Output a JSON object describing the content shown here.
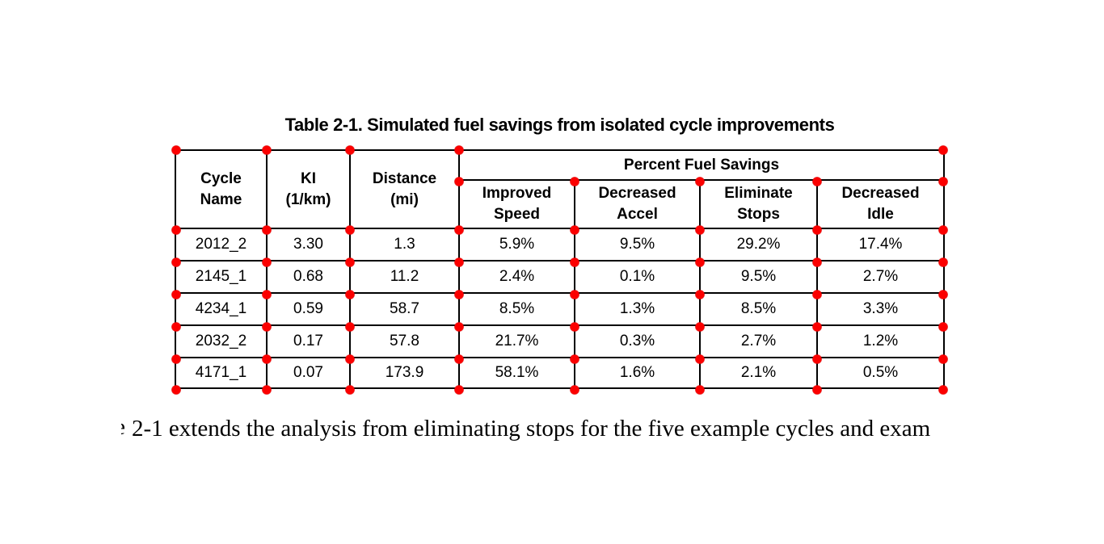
{
  "document": {
    "title": "Table 2-1. Simulated fuel savings from isolated cycle improvements",
    "table": {
      "col_headers": [
        "Cycle\nName",
        "KI\n(1/km)",
        "Distance\n(mi)"
      ],
      "span_header": "Percent Fuel Savings",
      "sub_headers": [
        "Improved\nSpeed",
        "Decreased\nAccel",
        "Eliminate\nStops",
        "Decreased\nIdle"
      ],
      "rows": [
        [
          "2012_2",
          "3.30",
          "1.3",
          "5.9%",
          "9.5%",
          "29.2%",
          "17.4%"
        ],
        [
          "2145_1",
          "0.68",
          "11.2",
          "2.4%",
          "0.1%",
          "9.5%",
          "2.7%"
        ],
        [
          "4234_1",
          "0.59",
          "58.7",
          "8.5%",
          "1.3%",
          "8.5%",
          "3.3%"
        ],
        [
          "2032_2",
          "0.17",
          "57.8",
          "21.7%",
          "0.3%",
          "2.7%",
          "1.2%"
        ],
        [
          "4171_1",
          "0.07",
          "173.9",
          "58.1%",
          "1.6%",
          "2.1%",
          "0.5%"
        ]
      ]
    },
    "body_text": {
      "clipped_prefix": "e",
      "visible": "2-1 extends the analysis from eliminating stops for the five example cycles and exam"
    }
  },
  "markers": {
    "label": "grid-intersection-marker",
    "color": "#fb0000"
  },
  "colors": {
    "ink": "#000000",
    "paper": "#ffffff"
  }
}
